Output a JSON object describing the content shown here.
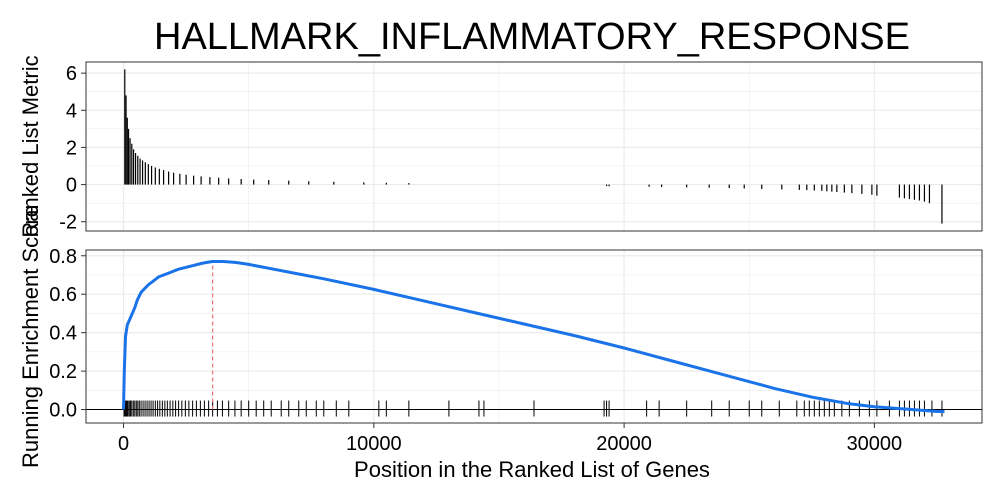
{
  "chart_data": {
    "title": "HALLMARK_INFLAMMATORY_RESPONSE",
    "xlabel": "Position in the Ranked List of Genes",
    "xlim": [
      -1500,
      34300
    ],
    "x_ticks": [
      0,
      10000,
      20000,
      30000
    ],
    "grid": true,
    "colors": {
      "es_line": "#1a73e8",
      "peak_line": "#e8766d",
      "bars": "#000000",
      "grid": "#ebebeb"
    },
    "panels": [
      {
        "type": "bar",
        "ylabel": "Ranked List Metric",
        "ylim": [
          -2.5,
          6.6
        ],
        "y_ticks": [
          -2,
          0,
          2,
          4,
          6
        ],
        "x": [
          50,
          100,
          150,
          200,
          260,
          330,
          400,
          480,
          570,
          660,
          760,
          870,
          990,
          1120,
          1270,
          1430,
          1600,
          1800,
          2000,
          2250,
          2500,
          2800,
          3100,
          3450,
          3800,
          4200,
          4700,
          5200,
          5800,
          6600,
          7400,
          8400,
          9600,
          10500,
          11400,
          19300,
          19400,
          21000,
          21500,
          22500,
          23400,
          24200,
          24800,
          25500,
          26300,
          27000,
          27300,
          27600,
          27900,
          28100,
          28300,
          28500,
          28800,
          29100,
          29500,
          29900,
          30100,
          31000,
          31200,
          31400,
          31600,
          31800,
          32000,
          32200,
          32700
        ],
        "values": [
          6.2,
          4.8,
          3.6,
          3.0,
          2.5,
          2.2,
          1.9,
          1.7,
          1.55,
          1.4,
          1.3,
          1.2,
          1.1,
          1.0,
          0.92,
          0.85,
          0.78,
          0.7,
          0.64,
          0.58,
          0.53,
          0.48,
          0.44,
          0.4,
          0.37,
          0.33,
          0.3,
          0.27,
          0.24,
          0.21,
          0.18,
          0.15,
          0.12,
          0.1,
          0.08,
          -0.08,
          -0.09,
          -0.12,
          -0.13,
          -0.15,
          -0.17,
          -0.19,
          -0.21,
          -0.24,
          -0.26,
          -0.29,
          -0.3,
          -0.32,
          -0.34,
          -0.36,
          -0.38,
          -0.4,
          -0.43,
          -0.46,
          -0.5,
          -0.55,
          -0.6,
          -0.7,
          -0.74,
          -0.78,
          -0.82,
          -0.86,
          -0.92,
          -1.0,
          -2.1
        ]
      },
      {
        "type": "line",
        "ylabel": "Running Enrichment Score",
        "ylim": [
          -0.07,
          0.83
        ],
        "y_ticks": [
          0.0,
          0.2,
          0.4,
          0.6,
          0.8
        ],
        "series": [
          {
            "x": [
              0,
              30,
              80,
              150,
              250,
              350,
              450,
              550,
              700,
              850,
              1000,
              1200,
              1400,
              1600,
              1800,
              2000,
              2200,
              2500,
              2800,
              3100,
              3300,
              3560,
              4000,
              4500,
              5000,
              6000,
              7000,
              8000,
              10000,
              12000,
              14000,
              16000,
              18000,
              20000,
              22000,
              24000,
              26000,
              27500,
              29000,
              30000,
              31000,
              31500,
              32000,
              32500,
              32800
            ],
            "y": [
              0.0,
              0.2,
              0.38,
              0.44,
              0.47,
              0.5,
              0.53,
              0.57,
              0.61,
              0.63,
              0.65,
              0.67,
              0.69,
              0.7,
              0.71,
              0.72,
              0.73,
              0.74,
              0.75,
              0.76,
              0.765,
              0.77,
              0.77,
              0.765,
              0.755,
              0.73,
              0.705,
              0.68,
              0.625,
              0.565,
              0.505,
              0.445,
              0.385,
              0.32,
              0.25,
              0.18,
              0.11,
              0.065,
              0.03,
              0.015,
              0.005,
              0.0,
              -0.005,
              -0.01,
              -0.01
            ]
          }
        ],
        "peak_x": 3560,
        "hit_positions": [
          20,
          60,
          100,
          140,
          180,
          230,
          280,
          330,
          390,
          450,
          510,
          570,
          630,
          700,
          780,
          860,
          940,
          1020,
          1100,
          1180,
          1270,
          1360,
          1450,
          1550,
          1650,
          1750,
          1860,
          1970,
          2080,
          2200,
          2330,
          2470,
          2610,
          2760,
          2910,
          3070,
          3230,
          3400,
          3560,
          3750,
          3950,
          4200,
          4450,
          4700,
          5000,
          5300,
          5600,
          5900,
          6300,
          6600,
          7000,
          7300,
          7700,
          8000,
          8500,
          9000,
          10200,
          10500,
          11400,
          13000,
          14200,
          14400,
          16400,
          19200,
          19300,
          19400,
          20900,
          21400,
          22500,
          23500,
          24200,
          25000,
          25500,
          26200,
          26900,
          27200,
          27400,
          27600,
          27800,
          28000,
          28200,
          28400,
          28700,
          29000,
          29400,
          29800,
          30100,
          30600,
          31000,
          31200,
          31400,
          31600,
          31800,
          32000,
          32300,
          32700
        ]
      }
    ]
  }
}
